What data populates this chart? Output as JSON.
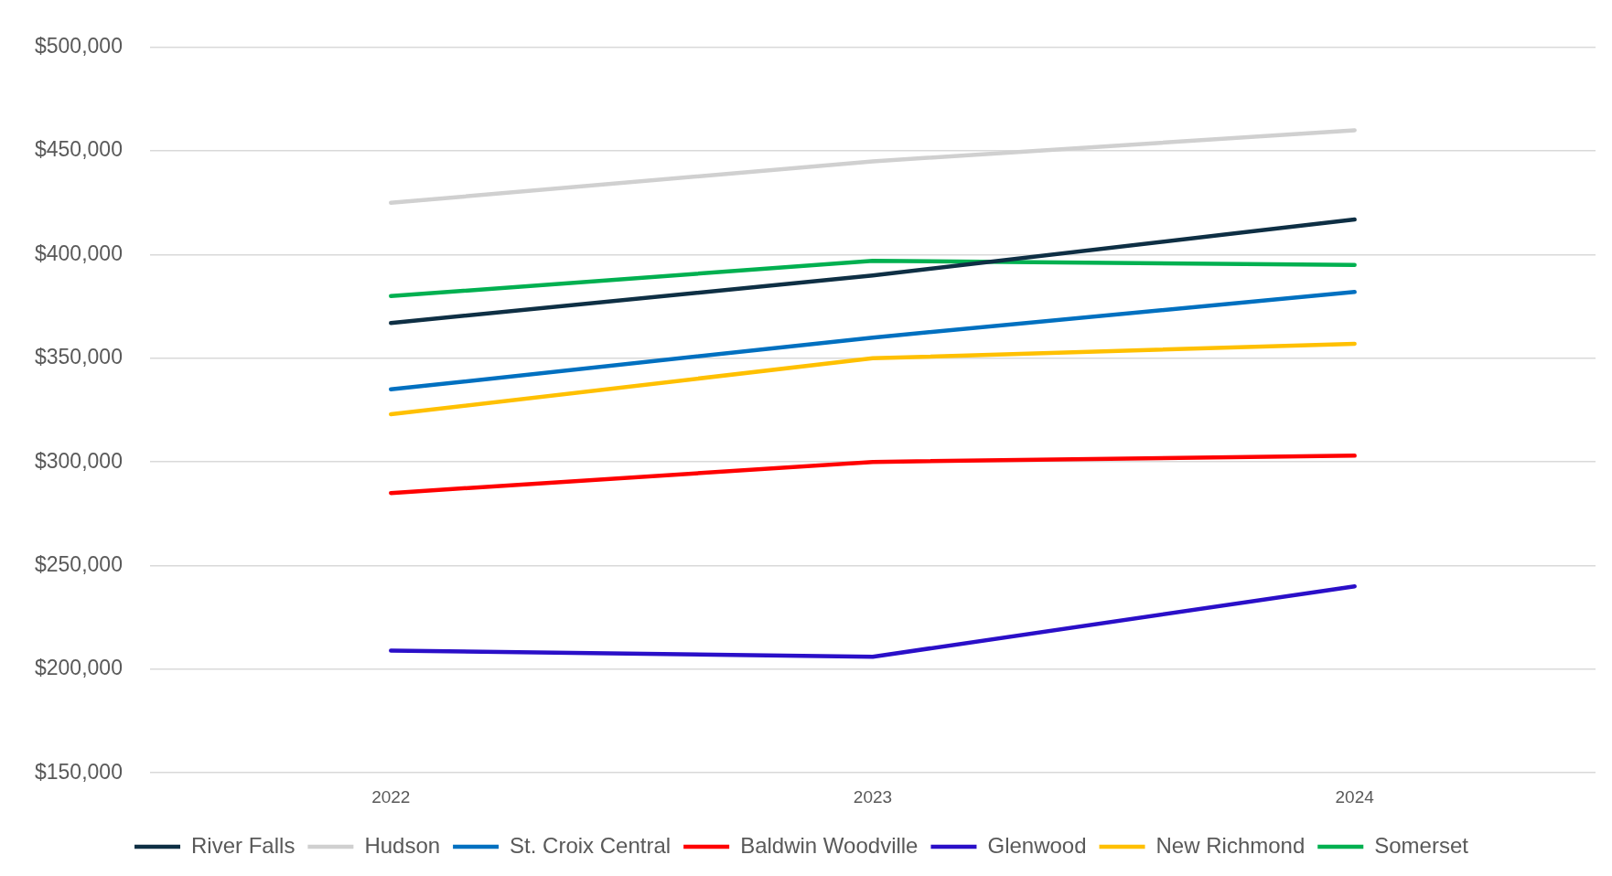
{
  "chart_data": {
    "type": "line",
    "categories": [
      "2022",
      "2023",
      "2024"
    ],
    "series": [
      {
        "name": "River Falls",
        "color": "#0e2f44",
        "values": [
          367000,
          390000,
          417000
        ]
      },
      {
        "name": "Hudson",
        "color": "#d0d0d0",
        "values": [
          425000,
          445000,
          460000
        ]
      },
      {
        "name": "St. Croix Central",
        "color": "#0070c0",
        "values": [
          335000,
          360000,
          382000
        ]
      },
      {
        "name": "Baldwin Woodville",
        "color": "#ff0000",
        "values": [
          285000,
          300000,
          303000
        ]
      },
      {
        "name": "Glenwood",
        "color": "#2a0fc8",
        "values": [
          209000,
          206000,
          240000
        ]
      },
      {
        "name": "New Richmond",
        "color": "#ffc000",
        "values": [
          323000,
          350000,
          357000
        ]
      },
      {
        "name": "Somerset",
        "color": "#00b050",
        "values": [
          380000,
          397000,
          395000
        ]
      }
    ],
    "ylim": [
      150000,
      500000
    ],
    "yticks": [
      {
        "value": 150000,
        "label": "$150,000"
      },
      {
        "value": 200000,
        "label": "$200,000"
      },
      {
        "value": 250000,
        "label": "$250,000"
      },
      {
        "value": 300000,
        "label": "$300,000"
      },
      {
        "value": 350000,
        "label": "$350,000"
      },
      {
        "value": 400000,
        "label": "$400,000"
      },
      {
        "value": 450000,
        "label": "$450,000"
      },
      {
        "value": 500000,
        "label": "$500,000"
      }
    ],
    "grid": "y",
    "legend": "bottom",
    "marker": "none",
    "line_style": "solid"
  }
}
